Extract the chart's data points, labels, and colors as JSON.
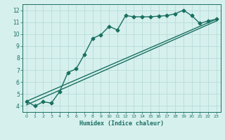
{
  "xlabel": "Humidex (Indice chaleur)",
  "ylabel": "",
  "bg_color": "#d6f0ee",
  "grid_color": "#b8dcd8",
  "line_color": "#1a7060",
  "xlim": [
    -0.5,
    23.5
  ],
  "ylim": [
    3.5,
    12.5
  ],
  "xticks": [
    0,
    1,
    2,
    3,
    4,
    5,
    6,
    7,
    8,
    9,
    10,
    11,
    12,
    13,
    14,
    15,
    16,
    17,
    18,
    19,
    20,
    21,
    22,
    23
  ],
  "yticks": [
    4,
    5,
    6,
    7,
    8,
    9,
    10,
    11,
    12
  ],
  "line1_x": [
    0,
    1,
    2,
    3,
    4,
    5,
    6,
    7,
    8,
    9,
    10,
    11,
    12,
    13,
    14,
    15,
    16,
    17,
    18,
    19,
    20,
    21,
    22,
    23
  ],
  "line1_y": [
    4.4,
    4.0,
    4.35,
    4.25,
    5.2,
    6.8,
    7.1,
    8.3,
    9.65,
    9.95,
    10.65,
    10.35,
    11.55,
    11.45,
    11.45,
    11.45,
    11.5,
    11.55,
    11.7,
    12.0,
    11.55,
    10.9,
    11.1,
    11.25
  ],
  "line2_x": [
    0,
    23
  ],
  "line2_y": [
    4.4,
    11.25
  ],
  "line3_x": [
    0,
    23
  ],
  "line3_y": [
    4.1,
    11.1
  ],
  "marker": "D",
  "markersize": 2.5,
  "linewidth": 1.0
}
